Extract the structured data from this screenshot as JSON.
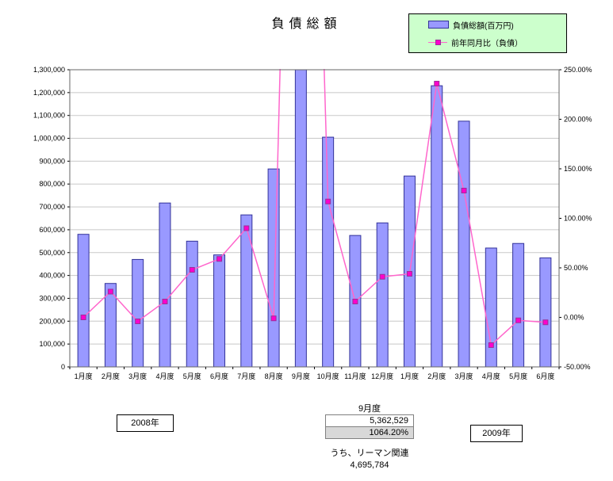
{
  "title": "負債総額",
  "legend": {
    "bar_label": "負債総額(百万円)",
    "line_label": "前年同月比（負債）"
  },
  "chart_data": {
    "type": "bar+line",
    "title": "負債総額",
    "legend_position": "top-right",
    "grid": true,
    "categories": [
      "1月度",
      "2月度",
      "3月度",
      "4月度",
      "5月度",
      "6月度",
      "7月度",
      "8月度",
      "9月度",
      "10月度",
      "11月度",
      "12月度",
      "1月度",
      "2月度",
      "3月度",
      "4月度",
      "5月度",
      "6月度"
    ],
    "series": [
      {
        "name": "負債総額(百万円)",
        "type": "bar",
        "axis": "left",
        "values": [
          580000,
          365000,
          470000,
          717000,
          550000,
          490000,
          665000,
          866000,
          5362529,
          1005000,
          575000,
          630000,
          835000,
          1230000,
          1075000,
          520000,
          540000,
          477000
        ]
      },
      {
        "name": "前年同月比（負債）",
        "type": "line",
        "axis": "right",
        "values": [
          0,
          26,
          -4,
          16,
          48,
          59,
          90,
          -1,
          1064.2,
          117,
          16,
          41,
          44,
          236,
          128,
          -28,
          -3,
          -5
        ]
      }
    ],
    "left_axis": {
      "min": 0,
      "max": 1300000,
      "step": 100000,
      "tick_labels": [
        "0",
        "100,000",
        "200,000",
        "300,000",
        "400,000",
        "500,000",
        "600,000",
        "700,000",
        "800,000",
        "900,000",
        "1,000,000",
        "1,100,000",
        "1,200,000",
        "1,300,000"
      ]
    },
    "right_axis": {
      "min": -50,
      "max": 250,
      "step": 50,
      "tick_labels": [
        "-50.00%",
        "0.00%",
        "50.00%",
        "100.00%",
        "150.00%",
        "200.00%",
        "250.00%"
      ]
    },
    "colors": {
      "bar_fill": "#9999ff",
      "bar_stroke": "#333399",
      "line": "#ff66cc",
      "marker_fill": "#ff00cc",
      "marker_stroke": "#993399",
      "legend_bg": "#ccffcc",
      "grid": "#c8c8c8",
      "plot_border": "#666666"
    }
  },
  "annotations": {
    "year_left": "2008年",
    "year_right": "2009年",
    "callout": {
      "month": "9月度",
      "value": "5,362,529",
      "percent": "1064.20%",
      "note": "うち、リーマン関連",
      "note_value": "4,695,784"
    }
  }
}
